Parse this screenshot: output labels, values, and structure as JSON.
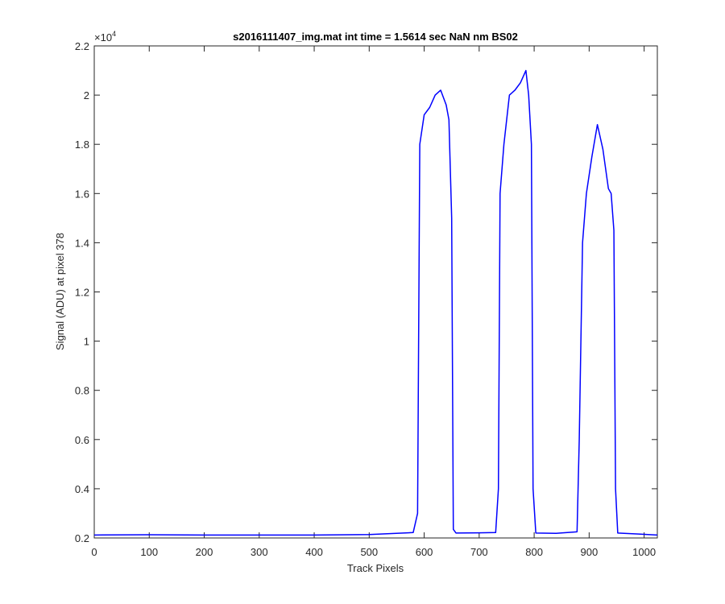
{
  "chart_data": {
    "type": "line",
    "title": "s2016111407_img.mat int time = 1.5614 sec  NaN nm BS02",
    "xlabel": "Track Pixels",
    "ylabel": "Signal (ADU) at pixel 378",
    "xlim": [
      0,
      1024
    ],
    "ylim": [
      0.2,
      2.2
    ],
    "x_ticks": [
      "0",
      "100",
      "200",
      "300",
      "400",
      "500",
      "600",
      "700",
      "800",
      "900",
      "1000"
    ],
    "y_ticks": [
      "0.2",
      "0.4",
      "0.6",
      "0.8",
      "1",
      "1.2",
      "1.4",
      "1.6",
      "1.8",
      "2",
      "2.2"
    ],
    "y_multiplier": {
      "base": "×10",
      "exponent": "4"
    },
    "grid": false,
    "series": [
      {
        "color": "#0000ff",
        "x": [
          0,
          100,
          200,
          300,
          400,
          500,
          580,
          588,
          592,
          600,
          610,
          620,
          630,
          640,
          645,
          650,
          653,
          658,
          700,
          730,
          735,
          738,
          745,
          755,
          765,
          775,
          785,
          790,
          795,
          798,
          803,
          840,
          878,
          882,
          888,
          895,
          905,
          915,
          925,
          935,
          940,
          945,
          948,
          952,
          990,
          1024
        ],
        "y": [
          0.212,
          0.213,
          0.212,
          0.212,
          0.212,
          0.214,
          0.222,
          0.3,
          1.8,
          1.92,
          1.95,
          2.0,
          2.02,
          1.96,
          1.9,
          1.5,
          0.235,
          0.22,
          0.221,
          0.222,
          0.4,
          1.6,
          1.8,
          2.0,
          2.02,
          2.05,
          2.1,
          2.0,
          1.8,
          0.4,
          0.22,
          0.219,
          0.225,
          0.6,
          1.4,
          1.6,
          1.75,
          1.88,
          1.78,
          1.62,
          1.6,
          1.45,
          0.4,
          0.22,
          0.216,
          0.212
        ]
      }
    ]
  }
}
